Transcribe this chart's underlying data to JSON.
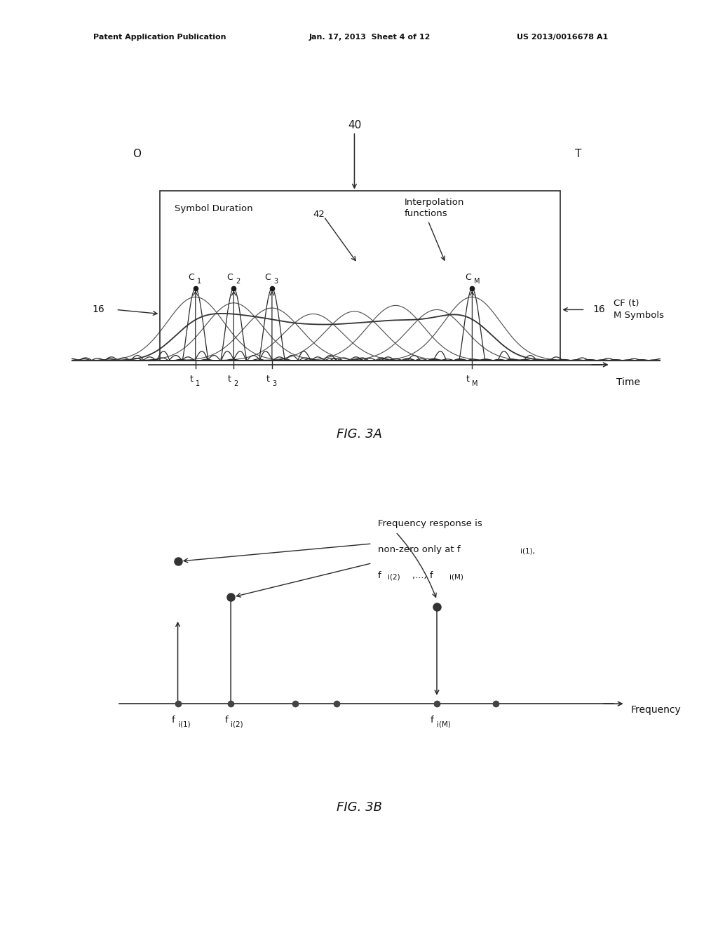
{
  "bg_color": "#ffffff",
  "header_left": "Patent Application Publication",
  "header_mid": "Jan. 17, 2013  Sheet 4 of 12",
  "header_right": "US 2013/0016678 A1",
  "fig3a_label": "FIG. 3A",
  "fig3b_label": "FIG. 3B",
  "fig3a_box_label": "40",
  "fig3a_O_label": "O",
  "fig3a_T_label": "T",
  "fig3a_symbol_duration": "Symbol Duration",
  "fig3a_42_label": "42",
  "fig3a_interp_label": "Interpolation\nfunctions",
  "fig3a_C1": "C",
  "fig3a_C2": "C",
  "fig3a_C3": "C",
  "fig3a_CM": "C",
  "fig3a_sub1": "1",
  "fig3a_sub2": "2",
  "fig3a_sub3": "3",
  "fig3a_subM": "M",
  "fig3a_16_left": "16",
  "fig3a_16_right": "16",
  "fig3a_CF_label": "CF (t)\nM Symbols",
  "fig3a_t1": "t",
  "fig3a_t2": "t",
  "fig3a_t3": "t",
  "fig3a_tM": "t",
  "fig3a_tsub1": "1",
  "fig3a_tsub2": "2",
  "fig3a_tsub3": "3",
  "fig3a_tsubM": "M",
  "fig3a_time_label": "Time",
  "fig3b_freq_label": "Frequency",
  "fig3b_annotation_line1": "Frequency response is",
  "fig3b_annotation_line2": "non-zero only at f",
  "fig3b_annotation_sub2": "i(1)",
  "fig3b_annotation_line3": "f",
  "fig3b_annotation_sub3a": "i(2)",
  "fig3b_annotation_line3b": ",..., f",
  "fig3b_annotation_sub3c": "i(M)",
  "fig3b_fi1_main": "f",
  "fig3b_fi1_sub": "i(1)",
  "fig3b_fi2_main": "f",
  "fig3b_fi2_sub": "i(2)",
  "fig3b_fiM_main": "f",
  "fig3b_fiM_sub": "i(M)"
}
